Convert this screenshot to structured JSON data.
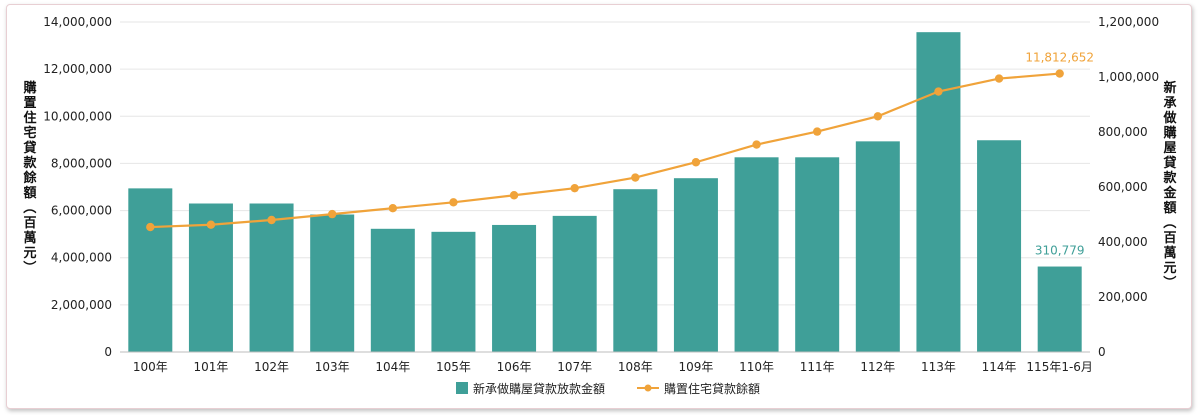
{
  "chart_data": {
    "type": "bar",
    "categories": [
      "100年",
      "101年",
      "102年",
      "103年",
      "104年",
      "105年",
      "106年",
      "107年",
      "108年",
      "109年",
      "110年",
      "111年",
      "112年",
      "113年",
      "114年",
      "115年1-6月"
    ],
    "series": [
      {
        "name": "新承做購屋貸款放款金額",
        "type": "bar",
        "axis": "right",
        "color": "#3f9f98",
        "values": [
          595000,
          540000,
          540000,
          500000,
          448000,
          437000,
          462000,
          495000,
          592000,
          632000,
          708000,
          708000,
          766000,
          1163000,
          770000,
          310779
        ]
      },
      {
        "name": "購置住宅貸款餘額",
        "type": "line",
        "axis": "left",
        "color": "#f0a33a",
        "values": [
          5300000,
          5400000,
          5600000,
          5850000,
          6100000,
          6350000,
          6650000,
          6950000,
          7400000,
          8050000,
          8800000,
          9350000,
          10000000,
          11050000,
          11600000,
          11812652
        ]
      }
    ],
    "annotations": [
      {
        "series": "購置住宅貸款餘額",
        "index": 15,
        "text": "11,812,652",
        "color": "#f0a33a"
      },
      {
        "series": "新承做購屋貸款放款金額",
        "index": 15,
        "text": "310,779",
        "color": "#3f9f98"
      }
    ],
    "ylabel_left": "購置住宅貸款餘額（百萬元）",
    "ylabel_right": "新承做購屋貸款金額（百萬元）",
    "ylim_left": [
      0,
      14000000
    ],
    "ylim_right": [
      0,
      1200000
    ],
    "yticks_left": [
      "0",
      "2,000,000",
      "4,000,000",
      "6,000,000",
      "8,000,000",
      "10,000,000",
      "12,000,000",
      "14,000,000"
    ],
    "yticks_right": [
      "0",
      "200,000",
      "400,000",
      "600,000",
      "800,000",
      "1,000,000",
      "1,200,000"
    ],
    "grid": true,
    "legend_position": "bottom-center"
  }
}
